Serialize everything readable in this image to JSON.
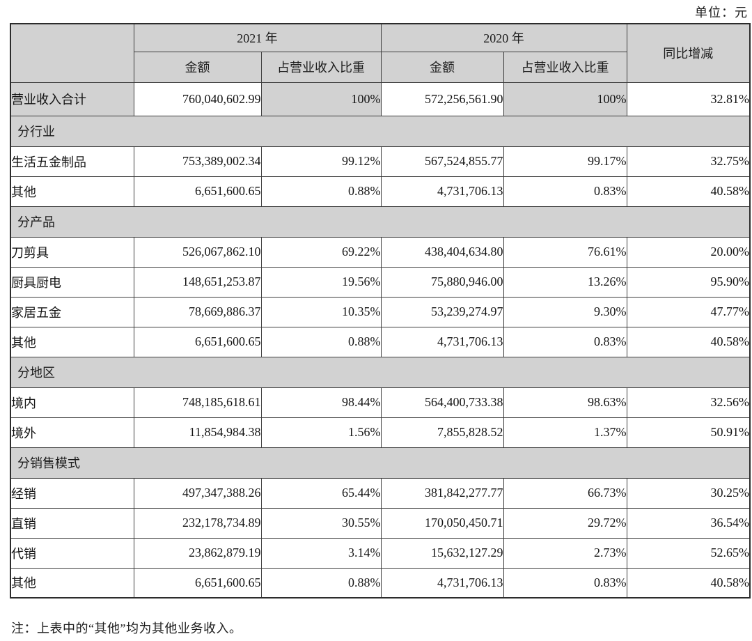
{
  "unit_label": "单位：元",
  "note": "注：上表中的“其他”均为其他业务收入。",
  "header": {
    "year_2021": "2021 年",
    "year_2020": "2020 年",
    "amount": "金额",
    "share": "占营业收入比重",
    "yoy": "同比增减"
  },
  "colors": {
    "section_bg": "#d2d2d2",
    "border": "#3d3d3d",
    "page_bg": "#ffffff"
  },
  "table": {
    "rows": [
      {
        "type": "total",
        "label": "营业收入合计",
        "cells": [
          "760,040,602.99",
          "100%",
          "572,256,561.90",
          "100%",
          "32.81%"
        ]
      },
      {
        "type": "section",
        "label": "分行业"
      },
      {
        "type": "data",
        "label": "生活五金制品",
        "cells": [
          "753,389,002.34",
          "99.12%",
          "567,524,855.77",
          "99.17%",
          "32.75%"
        ]
      },
      {
        "type": "data",
        "label": "其他",
        "cells": [
          "6,651,600.65",
          "0.88%",
          "4,731,706.13",
          "0.83%",
          "40.58%"
        ]
      },
      {
        "type": "section",
        "label": "分产品"
      },
      {
        "type": "data",
        "label": "刀剪具",
        "cells": [
          "526,067,862.10",
          "69.22%",
          "438,404,634.80",
          "76.61%",
          "20.00%"
        ]
      },
      {
        "type": "data",
        "label": "厨具厨电",
        "cells": [
          "148,651,253.87",
          "19.56%",
          "75,880,946.00",
          "13.26%",
          "95.90%"
        ]
      },
      {
        "type": "data",
        "label": "家居五金",
        "cells": [
          "78,669,886.37",
          "10.35%",
          "53,239,274.97",
          "9.30%",
          "47.77%"
        ]
      },
      {
        "type": "data",
        "label": "其他",
        "cells": [
          "6,651,600.65",
          "0.88%",
          "4,731,706.13",
          "0.83%",
          "40.58%"
        ]
      },
      {
        "type": "section",
        "label": "分地区"
      },
      {
        "type": "data",
        "label": "境内",
        "cells": [
          "748,185,618.61",
          "98.44%",
          "564,400,733.38",
          "98.63%",
          "32.56%"
        ]
      },
      {
        "type": "data",
        "label": "境外",
        "cells": [
          "11,854,984.38",
          "1.56%",
          "7,855,828.52",
          "1.37%",
          "50.91%"
        ]
      },
      {
        "type": "section",
        "label": "分销售模式"
      },
      {
        "type": "data",
        "label": "经销",
        "cells": [
          "497,347,388.26",
          "65.44%",
          "381,842,277.77",
          "66.73%",
          "30.25%"
        ]
      },
      {
        "type": "data",
        "label": "直销",
        "cells": [
          "232,178,734.89",
          "30.55%",
          "170,050,450.71",
          "29.72%",
          "36.54%"
        ]
      },
      {
        "type": "data",
        "label": "代销",
        "cells": [
          "23,862,879.19",
          "3.14%",
          "15,632,127.29",
          "2.73%",
          "52.65%"
        ]
      },
      {
        "type": "data",
        "label": "其他",
        "cells": [
          "6,651,600.65",
          "0.88%",
          "4,731,706.13",
          "0.83%",
          "40.58%"
        ]
      }
    ]
  }
}
